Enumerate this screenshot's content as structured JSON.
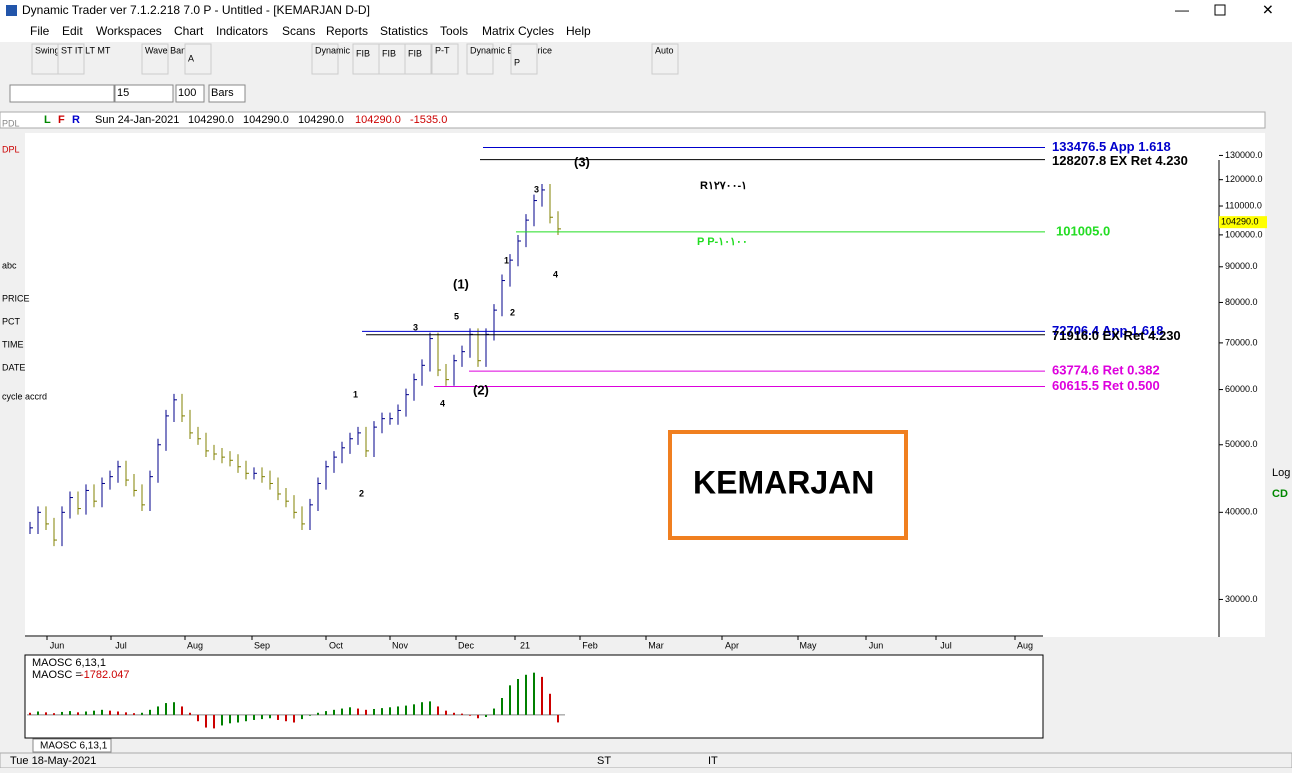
{
  "window": {
    "title": "Dynamic Trader ver 7.1.2.218 7.0 P - Untitled - [KEMARJAN D-D]"
  },
  "menu": [
    "File",
    "Edit",
    "Workspaces",
    "Chart",
    "Indicators",
    "Scans",
    "Reports",
    "Statistics",
    "Tools",
    "Matrix Cycles",
    "Help"
  ],
  "toolbar": {
    "items": [
      "Swings",
      "ST IT LT MT",
      "Wave Bands",
      "A",
      "Dynamic Time",
      "FIB",
      "FIB",
      "FIB",
      "P-T",
      "Dynamic EOW Price",
      "P",
      "Auto"
    ],
    "inputs": [
      "15",
      "100",
      "Bars"
    ]
  },
  "left_tools": [
    "PDL",
    "DPL",
    "abc",
    "PRICE",
    "PCT",
    "TIME",
    "DATE",
    "cycle accrd"
  ],
  "right_tools": [
    "Log",
    "CD"
  ],
  "info_bar": {
    "flags": [
      "L",
      "F",
      "R"
    ],
    "date": "Sun 24-Jan-2021",
    "open": "104290.0",
    "high": "104290.0",
    "low": "104290.0",
    "close": "104290.0",
    "change": "-1535.0"
  },
  "chart": {
    "type": "bar",
    "log_scale": true,
    "ylim": [
      26500,
      140000
    ],
    "yticks": [
      {
        "value": 30000,
        "label": "30000.0"
      },
      {
        "value": 40000,
        "label": "40000.0"
      },
      {
        "value": 50000,
        "label": "50000.0"
      },
      {
        "value": 60000,
        "label": "60000.0"
      },
      {
        "value": 70000,
        "label": "70000.0"
      },
      {
        "value": 80000,
        "label": "80000.0"
      },
      {
        "value": 90000,
        "label": "90000.0"
      },
      {
        "value": 100000,
        "label": "100000.0"
      },
      {
        "value": 110000,
        "label": "110000.0"
      },
      {
        "value": 120000,
        "label": "120000.0"
      },
      {
        "value": 130000,
        "label": "130000.0"
      }
    ],
    "months": [
      "Jun",
      "Jul",
      "Aug",
      "Sep",
      "Oct",
      "Nov",
      "Dec",
      "21",
      "Feb",
      "Mar",
      "Apr",
      "May",
      "Jun",
      "Jul",
      "Aug"
    ],
    "closes": [
      38000,
      40000,
      38500,
      36500,
      40000,
      42000,
      40500,
      43000,
      41500,
      44000,
      45000,
      46500,
      44500,
      43000,
      41000,
      45000,
      50000,
      55000,
      58000,
      55000,
      52000,
      51000,
      49000,
      48500,
      48000,
      47500,
      46500,
      45500,
      45500,
      45000,
      44000,
      42500,
      41500,
      40000,
      38500,
      41000,
      44000,
      46500,
      48000,
      49500,
      51000,
      52000,
      49000,
      53000,
      54500,
      54500,
      56000,
      59000,
      62000,
      65000,
      71000,
      64000,
      62000,
      66000,
      68000,
      72000,
      66000,
      72000,
      78000,
      86000,
      92000,
      98000,
      105000,
      112000,
      116000,
      106000,
      102000
    ],
    "up_color": "#00008b",
    "down_color": "#808000",
    "last_price": {
      "value": 104290,
      "label": "104290.0"
    },
    "levels": [
      {
        "value": 133476.5,
        "label": "133476.5 App 1.618",
        "color": "#0000cc"
      },
      {
        "value": 128207.8,
        "label": "128207.8 EX Ret 4.230",
        "color": "#000000"
      },
      {
        "value": 101005,
        "label": "101005.0",
        "color": "#22dd22"
      },
      {
        "value": 72706.4,
        "label": "72706.4 App 1.618",
        "color": "#0000cc"
      },
      {
        "value": 71916,
        "label": "71916.0 EX Ret 4.230",
        "color": "#000000"
      },
      {
        "value": 63774.6,
        "label": "63774.6 Ret 0.382",
        "color": "#dd00dd"
      },
      {
        "value": 60615.5,
        "label": "60615.5 Ret 0.500",
        "color": "#dd00dd"
      }
    ],
    "annotations": [
      "(3)",
      "3",
      "(1)",
      "5",
      "3",
      "1",
      "2",
      "4",
      "(2)",
      "1",
      "2",
      "4",
      "R١-١٢٧٠٠",
      "P P-١٠١٠٠"
    ],
    "watermark": "KEMARJAN"
  },
  "oscillator": {
    "name": "MAOSC 6,13,1",
    "readout_label": "MAOSC =",
    "readout": "-1782.047",
    "tab": "MAOSC 6,13,1",
    "values": [
      500,
      800,
      600,
      400,
      700,
      900,
      600,
      800,
      1000,
      1200,
      1000,
      800,
      600,
      400,
      500,
      1200,
      2000,
      2800,
      3000,
      2000,
      500,
      -1500,
      -3000,
      -3200,
      -2500,
      -2000,
      -1800,
      -1500,
      -1200,
      -1000,
      -800,
      -1200,
      -1500,
      -1800,
      -1000,
      -200,
      500,
      900,
      1200,
      1500,
      1800,
      1500,
      1200,
      1400,
      1600,
      1800,
      2000,
      2200,
      2500,
      3000,
      3200,
      2000,
      1000,
      500,
      300,
      -200,
      -800,
      -500,
      1500,
      4000,
      7000,
      8500,
      9500,
      10000,
      9000,
      5000,
      -1782
    ],
    "ylim": [
      -5000,
      13000
    ],
    "up_color": "#008000",
    "down_color": "#cc0000"
  },
  "status": {
    "date": "Tue 18-May-2021",
    "items": [
      "ST",
      "IT"
    ]
  }
}
